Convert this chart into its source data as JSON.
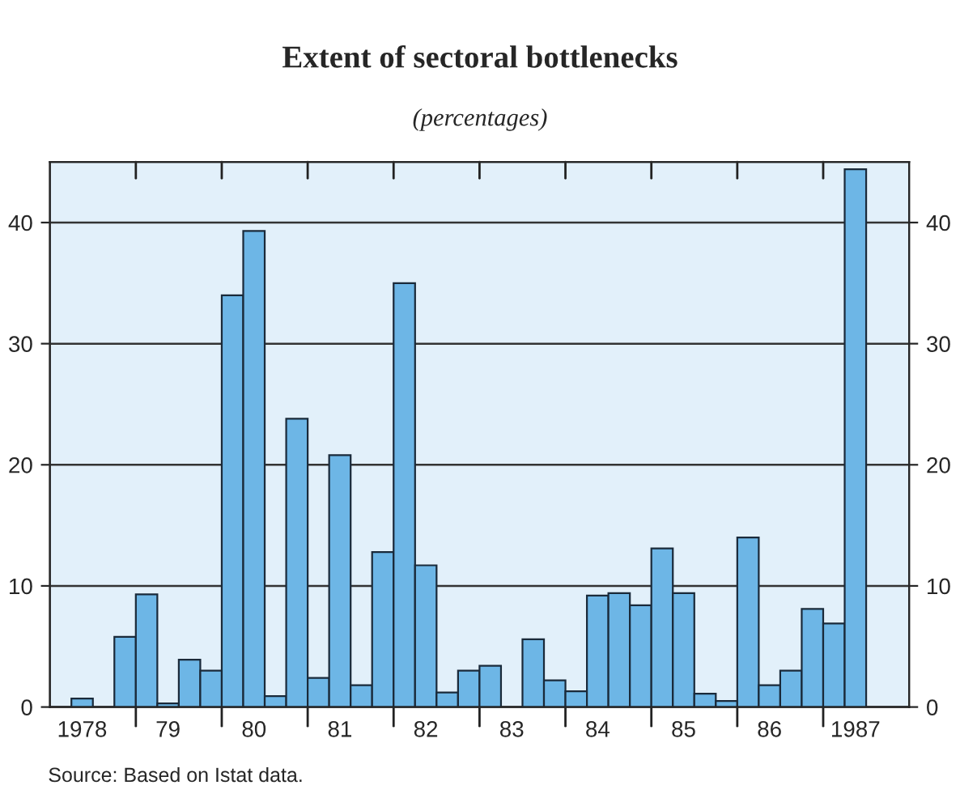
{
  "chart_data": {
    "type": "bar",
    "title": "Extent of sectoral bottlenecks",
    "subtitle": "(percentages)",
    "annotations": [
      "Source: Based on Istat data."
    ],
    "categories": [
      null,
      "1978",
      null,
      null,
      null,
      "79",
      null,
      null,
      null,
      "80",
      null,
      null,
      null,
      "81",
      null,
      null,
      null,
      "82",
      null,
      null,
      null,
      "83",
      null,
      null,
      null,
      "84",
      null,
      null,
      null,
      "85",
      null,
      null,
      null,
      "86",
      null,
      null,
      null,
      "1987",
      null,
      null
    ],
    "values": [
      null,
      0.7,
      null,
      5.8,
      9.3,
      0.3,
      3.9,
      3.0,
      34,
      39.3,
      0.9,
      23.8,
      2.4,
      20.8,
      1.8,
      12.8,
      35,
      11.7,
      1.2,
      3.0,
      3.4,
      null,
      5.6,
      2.2,
      1.3,
      9.2,
      9.4,
      8.4,
      13.1,
      9.4,
      1.1,
      0.5,
      14.0,
      1.8,
      3.0,
      8.1,
      6.9,
      44.4,
      null,
      null
    ],
    "color": "#6db6e6",
    "ylim": [
      0,
      45
    ],
    "yticks": [
      0,
      10,
      20,
      30,
      40
    ],
    "y2lim": [
      0,
      45
    ],
    "y2ticks": [
      0,
      10,
      20,
      30,
      40
    ],
    "grid": "y"
  }
}
